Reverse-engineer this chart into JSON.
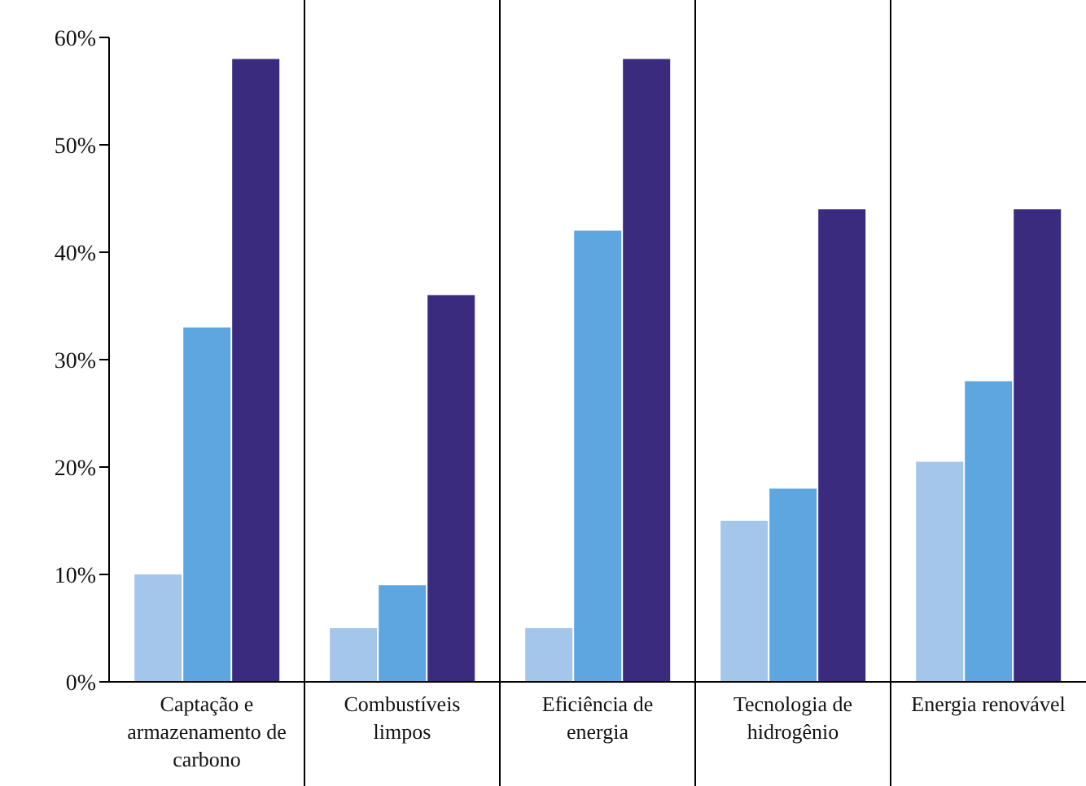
{
  "chart_data": {
    "type": "bar",
    "categories": [
      "Captação e armazenamento de carbono",
      "Combustíveis limpos",
      "Eficiência de energia",
      "Tecnologia de hidrogênio",
      "Energia renovável"
    ],
    "series": [
      {
        "color": "#a3c6ea",
        "values": [
          10,
          5,
          5,
          15,
          20.5
        ]
      },
      {
        "color": "#5ea6e0",
        "values": [
          33,
          9,
          42,
          18,
          28
        ]
      },
      {
        "color": "#3a2b7e",
        "values": [
          58,
          36,
          58,
          44,
          44
        ]
      }
    ],
    "ylim": [
      0,
      60
    ],
    "yticks": [
      {
        "value": 0,
        "label": "0%"
      },
      {
        "value": 10,
        "label": "10%"
      },
      {
        "value": 20,
        "label": "20%"
      },
      {
        "value": 30,
        "label": "30%"
      },
      {
        "value": 40,
        "label": "40%"
      },
      {
        "value": 50,
        "label": "50%"
      },
      {
        "value": 60,
        "label": "60%"
      }
    ],
    "grid": false
  }
}
